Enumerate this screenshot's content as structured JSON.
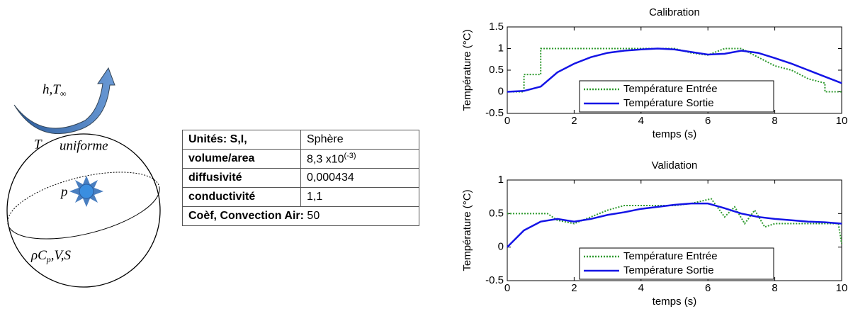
{
  "diagram": {
    "heat_label": {
      "main": "h,T",
      "sub": "∞"
    },
    "t_label": "T",
    "uniform_label": "uniforme",
    "p_label": "p",
    "properties_label": {
      "a": "ρC",
      "sub": "p",
      "b": ",V,S"
    }
  },
  "table": {
    "rows": [
      [
        "Unités: S,I,",
        "Sphère"
      ],
      [
        "volume/area",
        {
          "base": "8,3 x10",
          "sup": "(-3)"
        }
      ],
      [
        "diffusivité",
        "0,000434"
      ],
      [
        "conductivité",
        "1,1"
      ]
    ],
    "footer": {
      "label": "Coèf, Convection Air:",
      "value": "50"
    }
  },
  "chart_data": [
    {
      "type": "line",
      "title": "Calibration",
      "xlabel": "temps (s)",
      "ylabel": "Température (°C)",
      "xlim": [
        0,
        10
      ],
      "xticks": [
        0,
        2,
        4,
        6,
        8,
        10
      ],
      "ylim": [
        -0.5,
        1.5
      ],
      "yticks": [
        -0.5,
        0,
        0.5,
        1,
        1.5
      ],
      "legend": "lower center",
      "series": [
        {
          "name": "Température  Entrée",
          "color": "#2e9a2e",
          "style": "dotted",
          "x": [
            0,
            0.5,
            0.5,
            1,
            1,
            5,
            5.5,
            6,
            6.5,
            7,
            7.5,
            8,
            8.5,
            9,
            9.5,
            9.5,
            10
          ],
          "values": [
            0,
            0,
            0.4,
            0.4,
            1,
            1,
            0.9,
            0.85,
            1,
            1,
            0.8,
            0.6,
            0.5,
            0.3,
            0.2,
            0,
            0
          ]
        },
        {
          "name": "Température Sortie",
          "color": "#1414e6",
          "style": "solid",
          "x": [
            0,
            0.5,
            1,
            1.5,
            2,
            2.5,
            3,
            3.5,
            4,
            4.5,
            5,
            5.5,
            6,
            6.5,
            7,
            7.5,
            8,
            8.5,
            9,
            9.5,
            10
          ],
          "values": [
            0,
            0.02,
            0.12,
            0.45,
            0.65,
            0.8,
            0.9,
            0.95,
            0.98,
            1,
            0.98,
            0.92,
            0.86,
            0.88,
            0.95,
            0.9,
            0.78,
            0.65,
            0.5,
            0.35,
            0.2
          ]
        }
      ]
    },
    {
      "type": "line",
      "title": "Validation",
      "xlabel": "temps (s)",
      "ylabel": "Température (°C)",
      "xlim": [
        0,
        10
      ],
      "xticks": [
        0,
        2,
        4,
        6,
        8,
        10
      ],
      "ylim": [
        -0.5,
        1
      ],
      "yticks": [
        -0.5,
        0,
        0.5,
        1
      ],
      "legend": "lower center",
      "series": [
        {
          "name": "Température  Entrée",
          "color": "#2e9a2e",
          "style": "dotted",
          "x": [
            0,
            1.2,
            1.5,
            2,
            2.5,
            3,
            3.5,
            4.5,
            5,
            5.5,
            6.1,
            6.5,
            6.8,
            7.1,
            7.4,
            7.7,
            8,
            9.9,
            10
          ],
          "values": [
            0.5,
            0.5,
            0.4,
            0.35,
            0.45,
            0.55,
            0.62,
            0.62,
            0.62,
            0.65,
            0.72,
            0.45,
            0.6,
            0.35,
            0.55,
            0.3,
            0.35,
            0.35,
            0.05
          ]
        },
        {
          "name": "Température Sortie",
          "color": "#1414e6",
          "style": "solid",
          "x": [
            0,
            0.5,
            1,
            1.5,
            2,
            2.5,
            3,
            3.5,
            4,
            4.5,
            5,
            5.5,
            6,
            6.5,
            7,
            7.5,
            8,
            8.5,
            9,
            9.5,
            10
          ],
          "values": [
            0,
            0.25,
            0.38,
            0.42,
            0.38,
            0.42,
            0.48,
            0.52,
            0.57,
            0.6,
            0.63,
            0.65,
            0.65,
            0.58,
            0.5,
            0.45,
            0.42,
            0.4,
            0.38,
            0.37,
            0.35
          ]
        }
      ]
    }
  ]
}
